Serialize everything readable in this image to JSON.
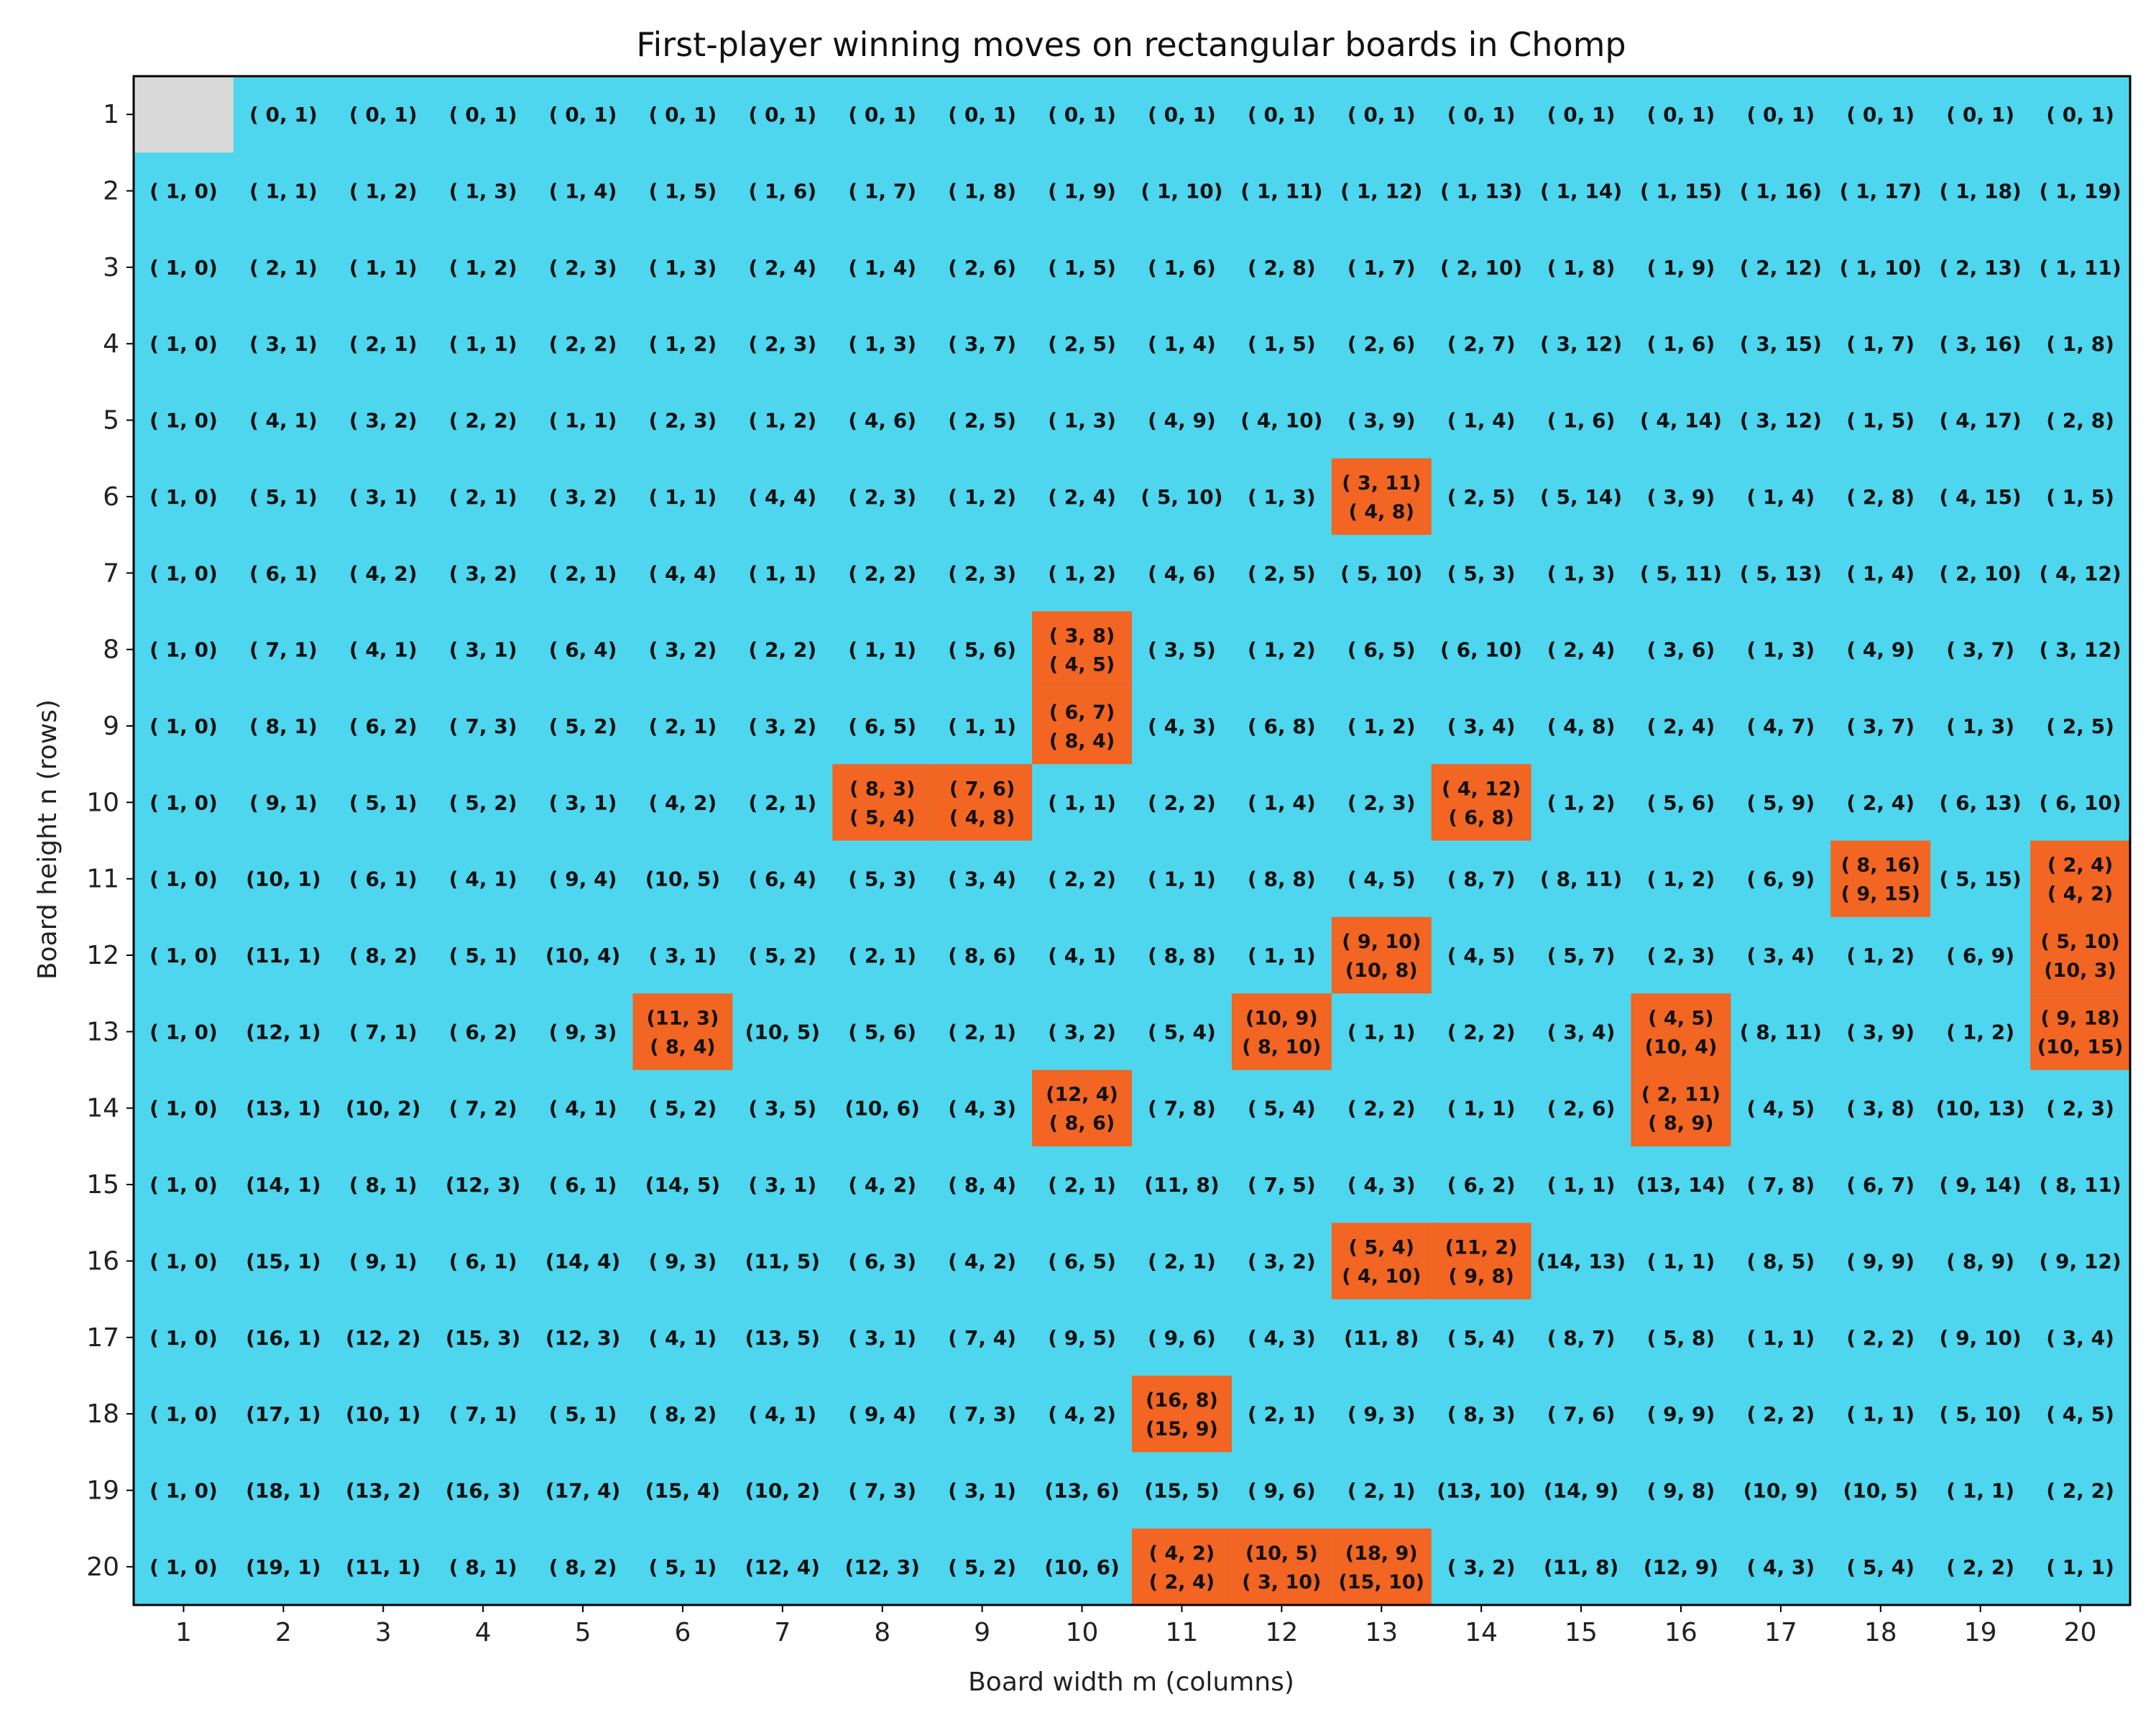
{
  "chart_data": {
    "type": "table",
    "title": "First-player winning moves on rectangular boards in Chomp",
    "xlabel": "Board width  m  (columns)",
    "ylabel": "Board height n  (rows)",
    "columns": [
      1,
      2,
      3,
      4,
      5,
      6,
      7,
      8,
      9,
      10,
      11,
      12,
      13,
      14,
      15,
      16,
      17,
      18,
      19,
      20
    ],
    "rows": [
      1,
      2,
      3,
      4,
      5,
      6,
      7,
      8,
      9,
      10,
      11,
      12,
      13,
      14,
      15,
      16,
      17,
      18,
      19,
      20
    ],
    "colors": {
      "single_move": "#4dd6ee",
      "multiple_moves": "#f26522",
      "losing_position": "#d9d9d9"
    },
    "cells": [
      [
        "",
        "( 0,  1)",
        "( 0,  1)",
        "( 0,  1)",
        "( 0,  1)",
        "( 0,  1)",
        "( 0,  1)",
        "( 0,  1)",
        "( 0,  1)",
        "( 0,  1)",
        "( 0,  1)",
        "( 0,  1)",
        "( 0,  1)",
        "( 0,  1)",
        "( 0,  1)",
        "( 0,  1)",
        "( 0,  1)",
        "( 0,  1)",
        "( 0,  1)",
        "( 0,  1)"
      ],
      [
        "( 1,  0)",
        "( 1,  1)",
        "( 1,  2)",
        "( 1,  3)",
        "( 1,  4)",
        "( 1,  5)",
        "( 1,  6)",
        "( 1,  7)",
        "( 1,  8)",
        "( 1,  9)",
        "( 1, 10)",
        "( 1, 11)",
        "( 1, 12)",
        "( 1, 13)",
        "( 1, 14)",
        "( 1, 15)",
        "( 1, 16)",
        "( 1, 17)",
        "( 1, 18)",
        "( 1, 19)"
      ],
      [
        "( 1,  0)",
        "( 2,  1)",
        "( 1,  1)",
        "( 1,  2)",
        "( 2,  3)",
        "( 1,  3)",
        "( 2,  4)",
        "( 1,  4)",
        "( 2,  6)",
        "( 1,  5)",
        "( 1,  6)",
        "( 2,  8)",
        "( 1,  7)",
        "( 2, 10)",
        "( 1,  8)",
        "( 1,  9)",
        "( 2, 12)",
        "( 1, 10)",
        "( 2, 13)",
        "( 1, 11)"
      ],
      [
        "( 1,  0)",
        "( 3,  1)",
        "( 2,  1)",
        "( 1,  1)",
        "( 2,  2)",
        "( 1,  2)",
        "( 2,  3)",
        "( 1,  3)",
        "( 3,  7)",
        "( 2,  5)",
        "( 1,  4)",
        "( 1,  5)",
        "( 2,  6)",
        "( 2,  7)",
        "( 3, 12)",
        "( 1,  6)",
        "( 3, 15)",
        "( 1,  7)",
        "( 3, 16)",
        "( 1,  8)"
      ],
      [
        "( 1,  0)",
        "( 4,  1)",
        "( 3,  2)",
        "( 2,  2)",
        "( 1,  1)",
        "( 2,  3)",
        "( 1,  2)",
        "( 4,  6)",
        "( 2,  5)",
        "( 1,  3)",
        "( 4,  9)",
        "( 4, 10)",
        "( 3,  9)",
        "( 1,  4)",
        "( 1,  6)",
        "( 4, 14)",
        "( 3, 12)",
        "( 1,  5)",
        "( 4, 17)",
        "( 2,  8)"
      ],
      [
        "( 1,  0)",
        "( 5,  1)",
        "( 3,  1)",
        "( 2,  1)",
        "( 3,  2)",
        "( 1,  1)",
        "( 4,  4)",
        "( 2,  3)",
        "( 1,  2)",
        "( 2,  4)",
        "( 5, 10)",
        "( 1,  3)",
        "( 3, 11)\n( 4,  8)",
        "( 2,  5)",
        "( 5, 14)",
        "( 3,  9)",
        "( 1,  4)",
        "( 2,  8)",
        "( 4, 15)",
        "( 1,  5)"
      ],
      [
        "( 1,  0)",
        "( 6,  1)",
        "( 4,  2)",
        "( 3,  2)",
        "( 2,  1)",
        "( 4,  4)",
        "( 1,  1)",
        "( 2,  2)",
        "( 2,  3)",
        "( 1,  2)",
        "( 4,  6)",
        "( 2,  5)",
        "( 5, 10)",
        "( 5,  3)",
        "( 1,  3)",
        "( 5, 11)",
        "( 5, 13)",
        "( 1,  4)",
        "( 2, 10)",
        "( 4, 12)"
      ],
      [
        "( 1,  0)",
        "( 7,  1)",
        "( 4,  1)",
        "( 3,  1)",
        "( 6,  4)",
        "( 3,  2)",
        "( 2,  2)",
        "( 1,  1)",
        "( 5,  6)",
        "( 3,  8)\n( 4,  5)",
        "( 3,  5)",
        "( 1,  2)",
        "( 6,  5)",
        "( 6, 10)",
        "( 2,  4)",
        "( 3,  6)",
        "( 1,  3)",
        "( 4,  9)",
        "( 3,  7)",
        "( 3, 12)"
      ],
      [
        "( 1,  0)",
        "( 8,  1)",
        "( 6,  2)",
        "( 7,  3)",
        "( 5,  2)",
        "( 2,  1)",
        "( 3,  2)",
        "( 6,  5)",
        "( 1,  1)",
        "( 6,  7)\n( 8,  4)",
        "( 4,  3)",
        "( 6,  8)",
        "( 1,  2)",
        "( 3,  4)",
        "( 4,  8)",
        "( 2,  4)",
        "( 4,  7)",
        "( 3,  7)",
        "( 1,  3)",
        "( 2,  5)"
      ],
      [
        "( 1,  0)",
        "( 9,  1)",
        "( 5,  1)",
        "( 5,  2)",
        "( 3,  1)",
        "( 4,  2)",
        "( 2,  1)",
        "( 8,  3)\n( 5,  4)",
        "( 7,  6)\n( 4,  8)",
        "( 1,  1)",
        "( 2,  2)",
        "( 1,  4)",
        "( 2,  3)",
        "( 4, 12)\n( 6,  8)",
        "( 1,  2)",
        "( 5,  6)",
        "( 5,  9)",
        "( 2,  4)",
        "( 6, 13)",
        "( 6, 10)"
      ],
      [
        "( 1,  0)",
        "(10,  1)",
        "( 6,  1)",
        "( 4,  1)",
        "( 9,  4)",
        "(10,  5)",
        "( 6,  4)",
        "( 5,  3)",
        "( 3,  4)",
        "( 2,  2)",
        "( 1,  1)",
        "( 8,  8)",
        "( 4,  5)",
        "( 8,  7)",
        "( 8, 11)",
        "( 1,  2)",
        "( 6,  9)",
        "( 8, 16)\n( 9, 15)",
        "( 5, 15)",
        "( 2,  4)\n( 4,  2)"
      ],
      [
        "( 1,  0)",
        "(11,  1)",
        "( 8,  2)",
        "( 5,  1)",
        "(10,  4)",
        "( 3,  1)",
        "( 5,  2)",
        "( 2,  1)",
        "( 8,  6)",
        "( 4,  1)",
        "( 8,  8)",
        "( 1,  1)",
        "( 9, 10)\n(10,  8)",
        "( 4,  5)",
        "( 5,  7)",
        "( 2,  3)",
        "( 3,  4)",
        "( 1,  2)",
        "( 6,  9)",
        "( 5, 10)\n(10,  3)"
      ],
      [
        "( 1,  0)",
        "(12,  1)",
        "( 7,  1)",
        "( 6,  2)",
        "( 9,  3)",
        "(11,  3)\n( 8,  4)",
        "(10,  5)",
        "( 5,  6)",
        "( 2,  1)",
        "( 3,  2)",
        "( 5,  4)",
        "(10,  9)\n( 8, 10)",
        "( 1,  1)",
        "( 2,  2)",
        "( 3,  4)",
        "( 4,  5)\n(10,  4)",
        "( 8, 11)",
        "( 3,  9)",
        "( 1,  2)",
        "( 9, 18)\n(10, 15)"
      ],
      [
        "( 1,  0)",
        "(13,  1)",
        "(10,  2)",
        "( 7,  2)",
        "( 4,  1)",
        "( 5,  2)",
        "( 3,  5)",
        "(10,  6)",
        "( 4,  3)",
        "(12,  4)\n( 8,  6)",
        "( 7,  8)",
        "( 5,  4)",
        "( 2,  2)",
        "( 1,  1)",
        "( 2,  6)",
        "( 2, 11)\n( 8,  9)",
        "( 4,  5)",
        "( 3,  8)",
        "(10, 13)",
        "( 2,  3)"
      ],
      [
        "( 1,  0)",
        "(14,  1)",
        "( 8,  1)",
        "(12,  3)",
        "( 6,  1)",
        "(14,  5)",
        "( 3,  1)",
        "( 4,  2)",
        "( 8,  4)",
        "( 2,  1)",
        "(11,  8)",
        "( 7,  5)",
        "( 4,  3)",
        "( 6,  2)",
        "( 1,  1)",
        "(13, 14)",
        "( 7,  8)",
        "( 6,  7)",
        "( 9, 14)",
        "( 8, 11)"
      ],
      [
        "( 1,  0)",
        "(15,  1)",
        "( 9,  1)",
        "( 6,  1)",
        "(14,  4)",
        "( 9,  3)",
        "(11,  5)",
        "( 6,  3)",
        "( 4,  2)",
        "( 6,  5)",
        "( 2,  1)",
        "( 3,  2)",
        "( 5,  4)\n( 4, 10)",
        "(11,  2)\n( 9,  8)",
        "(14, 13)",
        "( 1,  1)",
        "( 8,  5)",
        "( 9,  9)",
        "( 8,  9)",
        "( 9, 12)"
      ],
      [
        "( 1,  0)",
        "(16,  1)",
        "(12,  2)",
        "(15,  3)",
        "(12,  3)",
        "( 4,  1)",
        "(13,  5)",
        "( 3,  1)",
        "( 7,  4)",
        "( 9,  5)",
        "( 9,  6)",
        "( 4,  3)",
        "(11,  8)",
        "( 5,  4)",
        "( 8,  7)",
        "( 5,  8)",
        "( 1,  1)",
        "( 2,  2)",
        "( 9, 10)",
        "( 3,  4)"
      ],
      [
        "( 1,  0)",
        "(17,  1)",
        "(10,  1)",
        "( 7,  1)",
        "( 5,  1)",
        "( 8,  2)",
        "( 4,  1)",
        "( 9,  4)",
        "( 7,  3)",
        "( 4,  2)",
        "(16,  8)\n(15,  9)",
        "( 2,  1)",
        "( 9,  3)",
        "( 8,  3)",
        "( 7,  6)",
        "( 9,  9)",
        "( 2,  2)",
        "( 1,  1)",
        "( 5, 10)",
        "( 4,  5)"
      ],
      [
        "( 1,  0)",
        "(18,  1)",
        "(13,  2)",
        "(16,  3)",
        "(17,  4)",
        "(15,  4)",
        "(10,  2)",
        "( 7,  3)",
        "( 3,  1)",
        "(13,  6)",
        "(15,  5)",
        "( 9,  6)",
        "( 2,  1)",
        "(13, 10)",
        "(14,  9)",
        "( 9,  8)",
        "(10,  9)",
        "(10,  5)",
        "( 1,  1)",
        "( 2,  2)"
      ],
      [
        "( 1,  0)",
        "(19,  1)",
        "(11,  1)",
        "( 8,  1)",
        "( 8,  2)",
        "( 5,  1)",
        "(12,  4)",
        "(12,  3)",
        "( 5,  2)",
        "(10,  6)",
        "( 4,  2)\n( 2,  4)",
        "(10,  5)\n( 3, 10)",
        "(18,  9)\n(15, 10)",
        "( 3,  2)",
        "(11,  8)",
        "(12,  9)",
        "( 4,  3)",
        "( 5,  4)",
        "( 2,  2)",
        "( 1,  1)"
      ]
    ]
  }
}
